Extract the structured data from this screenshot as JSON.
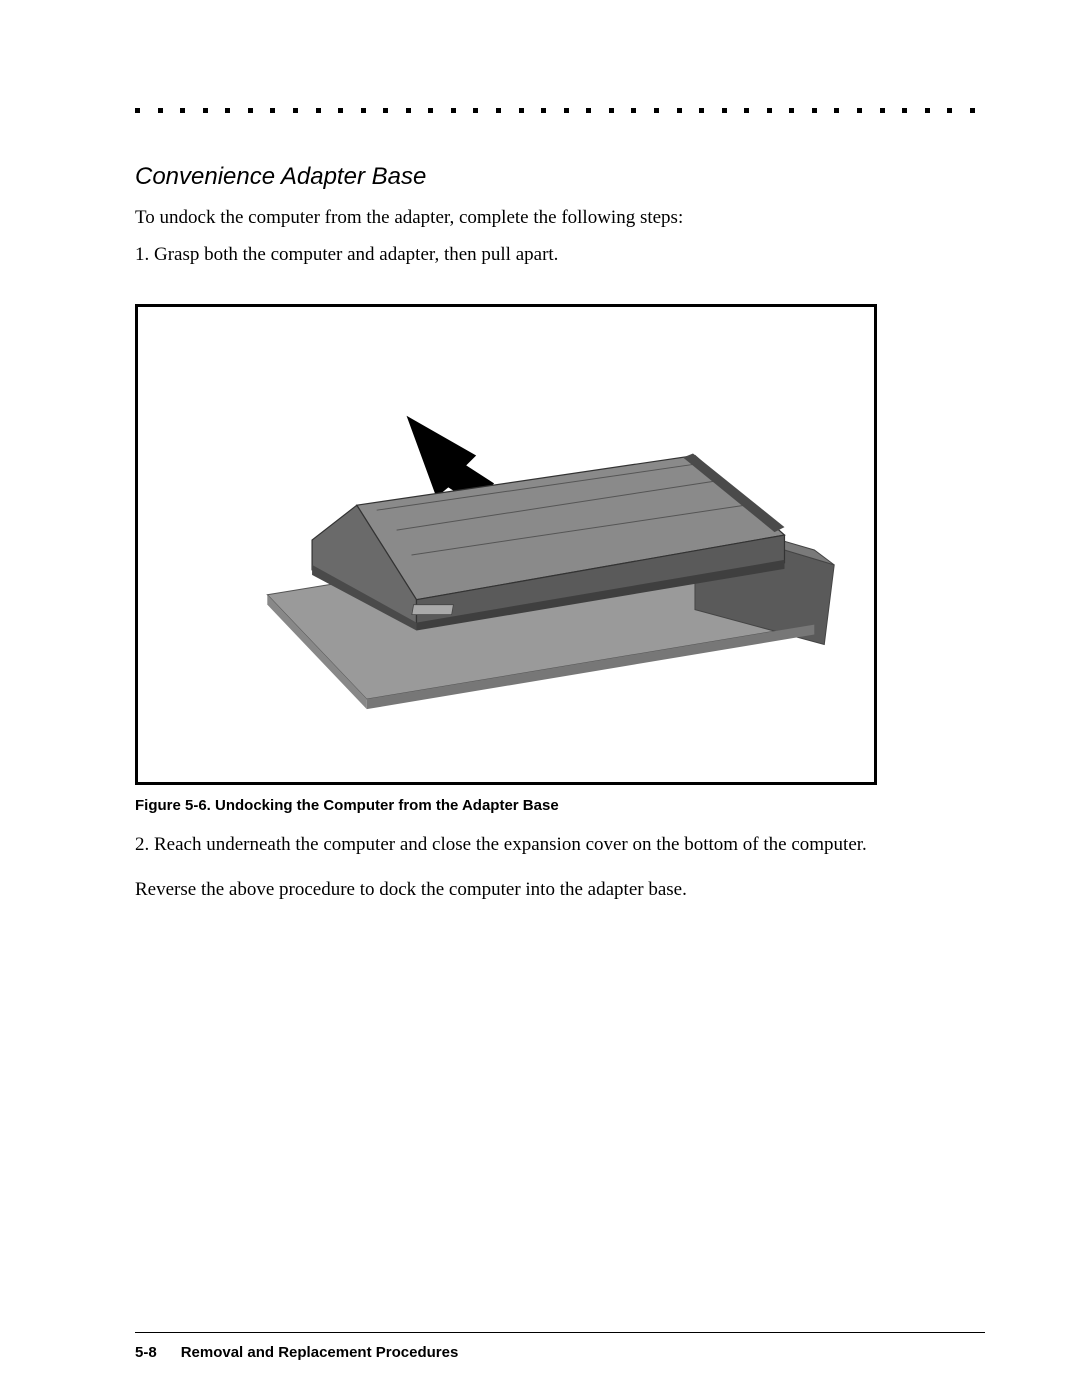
{
  "page": {
    "dot_count": 38,
    "dot_color": "#000000",
    "heading": "Convenience Adapter Base",
    "intro": "To undock the computer from the adapter, complete the following steps:",
    "step1": "1. Grasp both the computer and adapter, then pull apart.",
    "figure": {
      "caption": "Figure 5-6.  Undocking the Computer from the Adapter Base",
      "border_color": "#000000",
      "device_body": "#7a7a7a",
      "device_dark": "#5a5a5a",
      "device_light": "#9a9a9a",
      "arrow_color": "#000000"
    },
    "step2": "2. Reach underneath the computer and close the expansion cover on the bottom of the computer.",
    "closing": "Reverse the above procedure to dock the computer into the adapter base.",
    "footer": {
      "page_number": "5-8",
      "section": "Removal and Replacement Procedures"
    }
  }
}
